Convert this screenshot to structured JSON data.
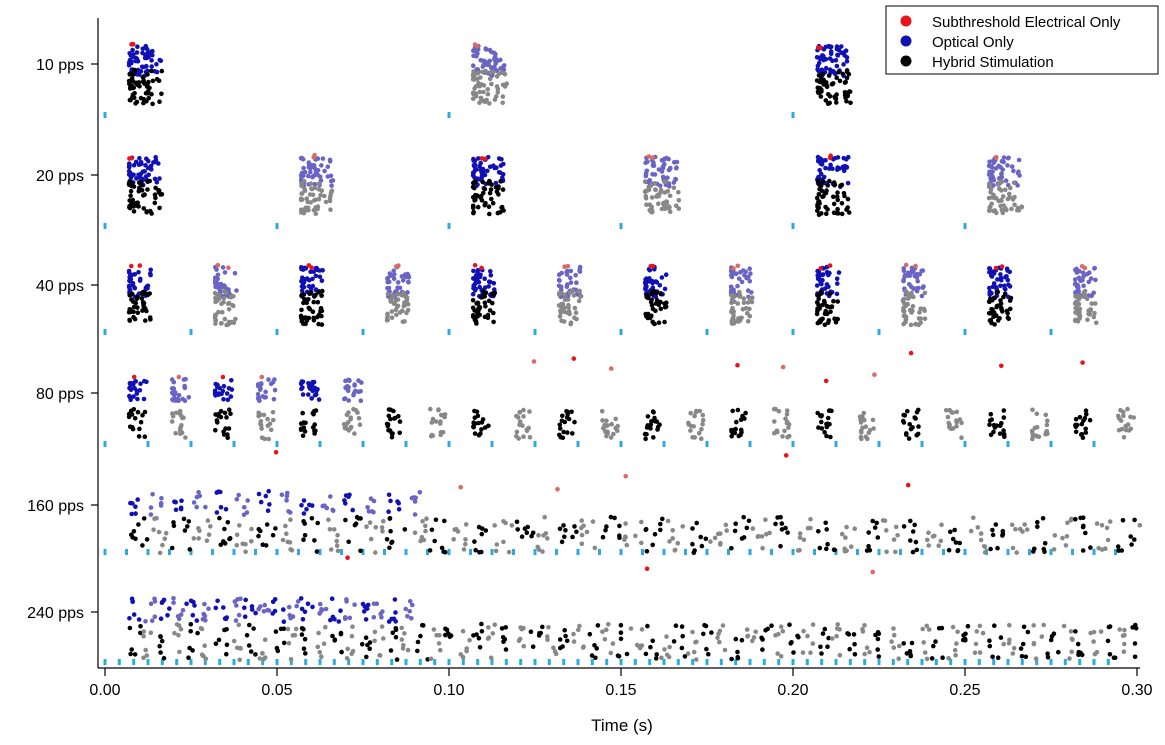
{
  "chart_data": {
    "type": "scatter",
    "subtype": "raster",
    "title": "",
    "xlabel": "Time (s)",
    "ylabel": "",
    "xlim": [
      0.0,
      0.3
    ],
    "x_ticks": [
      "0.00",
      "0.05",
      "0.10",
      "0.15",
      "0.20",
      "0.25",
      "0.30"
    ],
    "x_tick_values": [
      0.0,
      0.05,
      0.1,
      0.15,
      0.2,
      0.25,
      0.3
    ],
    "grid": false,
    "legend_position": "top-right",
    "legend": [
      {
        "label": "Subthreshold Electrical Only",
        "color": "#e8141b"
      },
      {
        "label": "Optical Only",
        "color": "#1010b4"
      },
      {
        "label": "Hybrid Stimulation",
        "color": "#000000"
      }
    ],
    "colors": {
      "electrical": "#e8141b",
      "electrical_alt": "#d96b62",
      "optical": "#1010b4",
      "optical_alt": "#6a64c4",
      "hybrid": "#000000",
      "hybrid_alt": "#888888",
      "stimulus_marker": "#29abe2"
    },
    "rows": [
      {
        "label": "10 pps",
        "rate": 10,
        "pulse_times": [
          0.0,
          0.1,
          0.2
        ]
      },
      {
        "label": "20 pps",
        "rate": 20,
        "pulse_times": [
          0.0,
          0.05,
          0.1,
          0.15,
          0.2,
          0.25
        ]
      },
      {
        "label": "40 pps",
        "rate": 40,
        "pulse_times": [
          0.0,
          0.025,
          0.05,
          0.075,
          0.1,
          0.125,
          0.15,
          0.175,
          0.2,
          0.225,
          0.25,
          0.275
        ]
      },
      {
        "label": "80 pps",
        "rate": 80,
        "pulse_period": 0.0125,
        "pulse_start": 0.0,
        "pulse_end": 0.2875
      },
      {
        "label": "160 pps",
        "rate": 160,
        "pulse_period": 0.00625,
        "pulse_start": 0.0,
        "pulse_end": 0.29375
      },
      {
        "label": "240 pps",
        "rate": 240,
        "pulse_period": 0.0041667,
        "pulse_start": 0.0,
        "pulse_end": 0.2958
      }
    ]
  }
}
